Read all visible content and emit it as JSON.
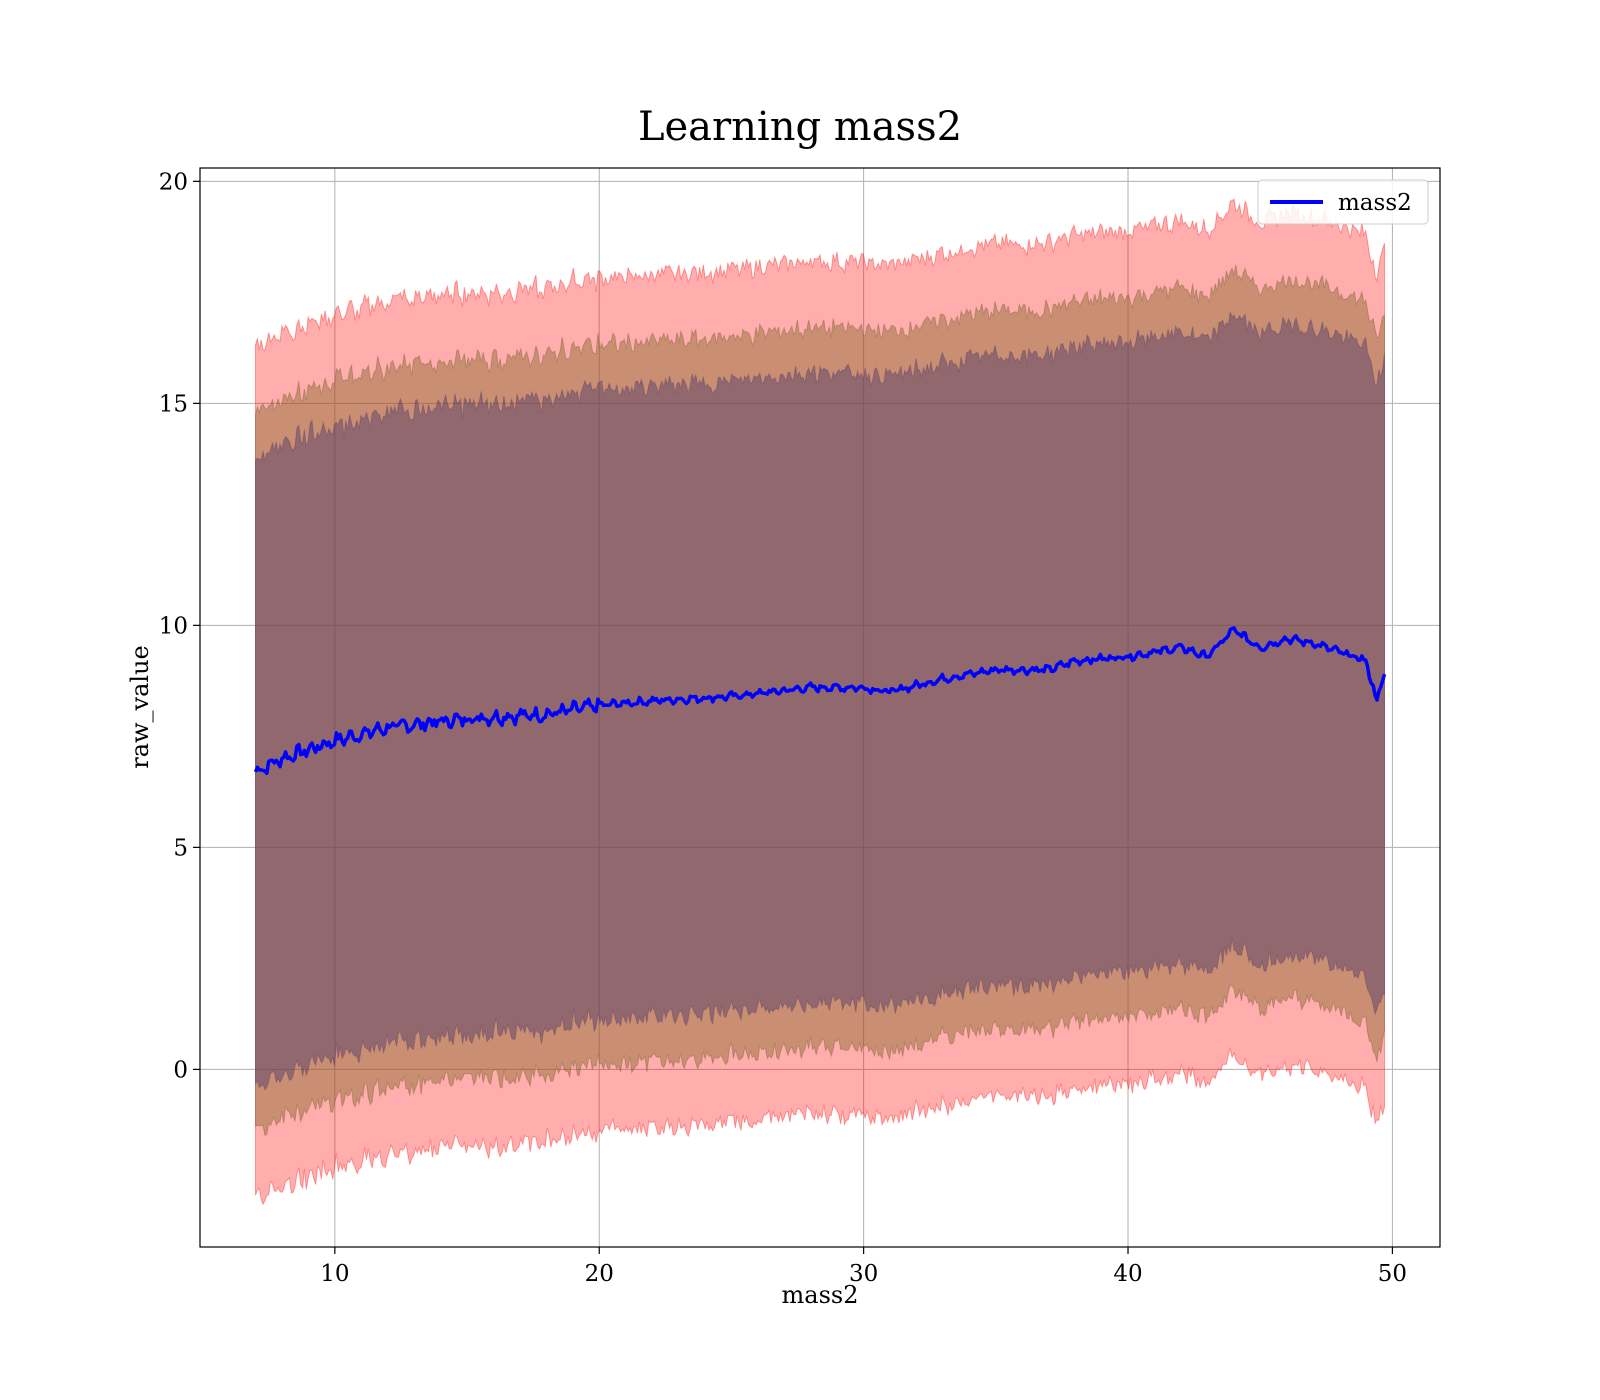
{
  "chart_data": {
    "type": "line",
    "title": "Learning mass2",
    "xlabel": "mass2",
    "ylabel": "raw_value",
    "xlim": [
      4.9,
      51.8
    ],
    "ylim": [
      -4.0,
      20.3
    ],
    "x_ticks": [
      10,
      20,
      30,
      40,
      50
    ],
    "y_ticks": [
      0,
      5,
      10,
      15,
      20
    ],
    "x_tick_labels": [
      "10",
      "20",
      "30",
      "40",
      "50"
    ],
    "y_tick_labels": [
      "0",
      "5",
      "10",
      "15",
      "20"
    ],
    "grid": true,
    "legend": {
      "position": "top-right",
      "entries": [
        "mass2"
      ]
    },
    "colors": {
      "line": "#0000ff",
      "band": "#ff0000",
      "axes": "#000000",
      "grid": "#b0b0b0"
    },
    "series": [
      {
        "name": "mass2",
        "x": [
          7.0,
          8.0,
          10.0,
          12.0,
          15.0,
          18.0,
          20.0,
          22.0,
          25.0,
          28.0,
          30.0,
          31.0,
          33.0,
          35.0,
          37.0,
          38.0,
          40.0,
          42.0,
          43.0,
          44.0,
          45.0,
          46.0,
          47.0,
          48.0,
          49.0,
          49.4,
          49.7
        ],
        "y": [
          6.7,
          7.0,
          7.4,
          7.7,
          7.9,
          8.0,
          8.2,
          8.3,
          8.4,
          8.6,
          8.6,
          8.5,
          8.8,
          9.0,
          9.0,
          9.2,
          9.3,
          9.5,
          9.3,
          9.9,
          9.5,
          9.7,
          9.6,
          9.4,
          9.2,
          8.3,
          8.9
        ]
      }
    ],
    "bands": [
      {
        "lower_offset": -9.6,
        "upper_offset": 9.6
      },
      {
        "lower_offset": -8.1,
        "upper_offset": 8.1
      },
      {
        "lower_offset": -7.1,
        "upper_offset": 7.1
      }
    ]
  }
}
